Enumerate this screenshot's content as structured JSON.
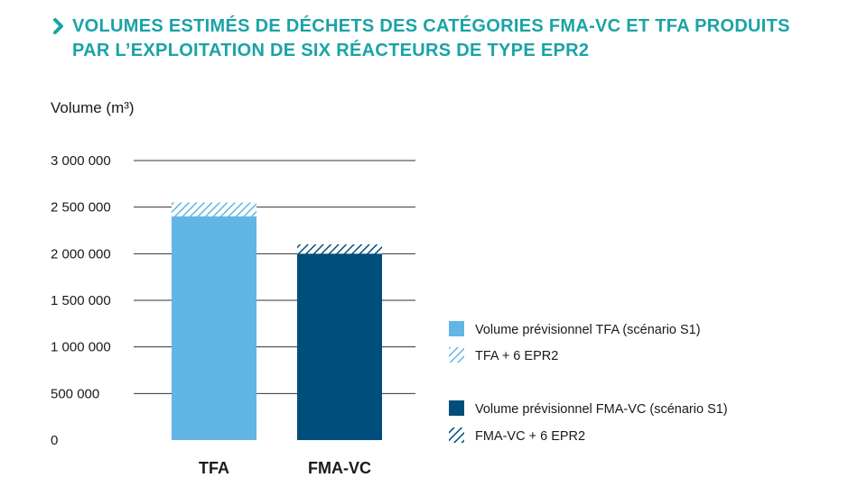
{
  "title_lines": [
    "VOLUMES ESTIMÉS DE DÉCHETS DES CATÉGORIES FMA-VC ET TFA PRODUITS",
    "PAR L’EXPLOITATION DE SIX RÉACTEURS DE TYPE EPR2"
  ],
  "colors": {
    "title": "#1aa3a6",
    "tfa": "#62b6e6",
    "fma_vc": "#004e7c",
    "grid": "#333333"
  },
  "chart_data": {
    "type": "bar",
    "stacked": true,
    "ylabel": "Volume (m³)",
    "ylim": [
      0,
      3000000
    ],
    "yticks": [
      0,
      500000,
      1000000,
      1500000,
      2000000,
      2500000,
      3000000
    ],
    "ytick_labels": [
      "0",
      "500 000",
      "1 000 000",
      "1 500 000",
      "2 000 000",
      "2 500 000",
      "3 000 000"
    ],
    "grid": true,
    "legend_position": "right",
    "categories": [
      "TFA",
      "FMA-VC"
    ],
    "series": [
      {
        "name": "Volume prévisionnel TFA (scénario S1)",
        "values": [
          2400000,
          null
        ],
        "color": "#62b6e6",
        "pattern": "solid"
      },
      {
        "name": "TFA + 6 EPR2",
        "values": [
          150000,
          null
        ],
        "color": "#62b6e6",
        "pattern": "hatched"
      },
      {
        "name": "Volume prévisionnel FMA-VC (scénario S1)",
        "values": [
          null,
          2000000
        ],
        "color": "#004e7c",
        "pattern": "solid"
      },
      {
        "name": "FMA-VC + 6 EPR2",
        "values": [
          null,
          100000
        ],
        "color": "#004e7c",
        "pattern": "hatched"
      }
    ]
  }
}
